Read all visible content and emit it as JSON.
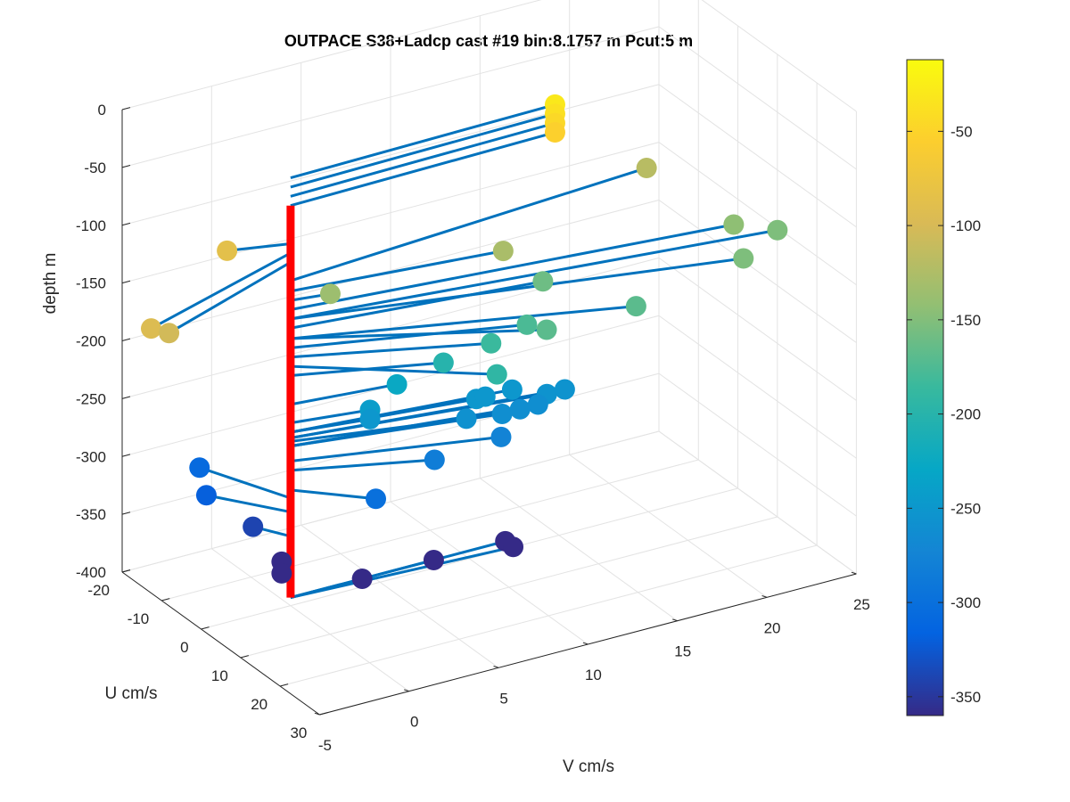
{
  "chart_data": {
    "type": "scatter3d",
    "title": "OUTPACE S38+Ladcp cast #19 bin:8.1757 m  Pcut:5 m",
    "xlabel": "U cm/s",
    "ylabel": "V cm/s",
    "zlabel": "depth m",
    "xlim": [
      -20,
      30
    ],
    "ylim": [
      -5,
      25
    ],
    "zlim": [
      -400,
      0
    ],
    "x_ticks": [
      "-20",
      "-10",
      "0",
      "10",
      "20",
      "30"
    ],
    "y_ticks": [
      "-5",
      "0",
      "5",
      "10",
      "15",
      "20",
      "25"
    ],
    "z_ticks": [
      "0",
      "-50",
      "-100",
      "-150",
      "-200",
      "-250",
      "-300",
      "-350",
      "-400"
    ],
    "colorbar": {
      "ticks": [
        "-50",
        "-100",
        "-150",
        "-200",
        "-250",
        "-300",
        "-350"
      ],
      "range": [
        -360,
        -12
      ],
      "colormap": [
        "#352a87",
        "#0363e1",
        "#1485d4",
        "#06a7c6",
        "#38b99e",
        "#92bf73",
        "#d9ba56",
        "#fcce2e",
        "#f9fb0e"
      ]
    },
    "profile_line_color": "#ff0000",
    "vector_color": "#0072bd",
    "profile": {
      "depth_top": -54,
      "depth_bottom": -393
    },
    "points": [
      {
        "u": -1.0,
        "v": 15.0,
        "depth": -30
      },
      {
        "u": -1.0,
        "v": 15.0,
        "depth": -38
      },
      {
        "u": -1.0,
        "v": 15.0,
        "depth": -46
      },
      {
        "u": -1.0,
        "v": 15.0,
        "depth": -54
      },
      {
        "u": -2.5,
        "v": -3.0,
        "depth": -87
      },
      {
        "u": 10.0,
        "v": -10.0,
        "depth": -95
      },
      {
        "u": 10.0,
        "v": -9.0,
        "depth": -103
      },
      {
        "u": 1.0,
        "v": 2.0,
        "depth": -136
      },
      {
        "u": 4.0,
        "v": 11.0,
        "depth": -128
      },
      {
        "u": -5.0,
        "v": 21.0,
        "depth": -119
      },
      {
        "u": 8.0,
        "v": 23.0,
        "depth": -144
      },
      {
        "u": 15.0,
        "v": 22.0,
        "depth": -152
      },
      {
        "u": 10.0,
        "v": 25.0,
        "depth": -152
      },
      {
        "u": 15.0,
        "v": 16.0,
        "depth": -169
      },
      {
        "u": 5.0,
        "v": 13.0,
        "depth": -160
      },
      {
        "u": 15.0,
        "v": 11.0,
        "depth": -169
      },
      {
        "u": 10.0,
        "v": 11.0,
        "depth": -177
      },
      {
        "u": 10.0,
        "v": 9.0,
        "depth": -185
      },
      {
        "u": 16.0,
        "v": 8.0,
        "depth": -193
      },
      {
        "u": 7.0,
        "v": 7.0,
        "depth": -201
      },
      {
        "u": 2.0,
        "v": 5.5,
        "depth": -226
      },
      {
        "u": 2.0,
        "v": 4.0,
        "depth": -242
      },
      {
        "u": 2.0,
        "v": 4.0,
        "depth": -250
      },
      {
        "u": 4.0,
        "v": 9.5,
        "depth": -250
      },
      {
        "u": 4.0,
        "v": 10.0,
        "depth": -250
      },
      {
        "u": 4.0,
        "v": 11.5,
        "depth": -250
      },
      {
        "u": 6.0,
        "v": 13.0,
        "depth": -255
      },
      {
        "u": 6.0,
        "v": 14.0,
        "depth": -255
      },
      {
        "u": 6.0,
        "v": 8.5,
        "depth": -258
      },
      {
        "u": 6.0,
        "v": 10.5,
        "depth": -262
      },
      {
        "u": 6.0,
        "v": 11.5,
        "depth": -262
      },
      {
        "u": 6.0,
        "v": 12.5,
        "depth": -262
      },
      {
        "u": 8.0,
        "v": 10.0,
        "depth": -275
      },
      {
        "u": 7.0,
        "v": 6.5,
        "depth": -283
      },
      {
        "u": 8.0,
        "v": 3.0,
        "depth": -300
      },
      {
        "u": -14.0,
        "v": -2.0,
        "depth": -307
      },
      {
        "u": -10.0,
        "v": -2.5,
        "depth": -319
      },
      {
        "u": -5.0,
        "v": -1.0,
        "depth": -340
      },
      {
        "u": 0.0,
        "v": -0.5,
        "depth": -360
      },
      {
        "u": 0.0,
        "v": -0.5,
        "depth": -370
      },
      {
        "u": 0.0,
        "v": 4.0,
        "depth": -393
      },
      {
        "u": 0.0,
        "v": 8.0,
        "depth": -393
      },
      {
        "u": 0.0,
        "v": 12.0,
        "depth": -393
      },
      {
        "u": 2.0,
        "v": 12.0,
        "depth": -393
      }
    ]
  }
}
